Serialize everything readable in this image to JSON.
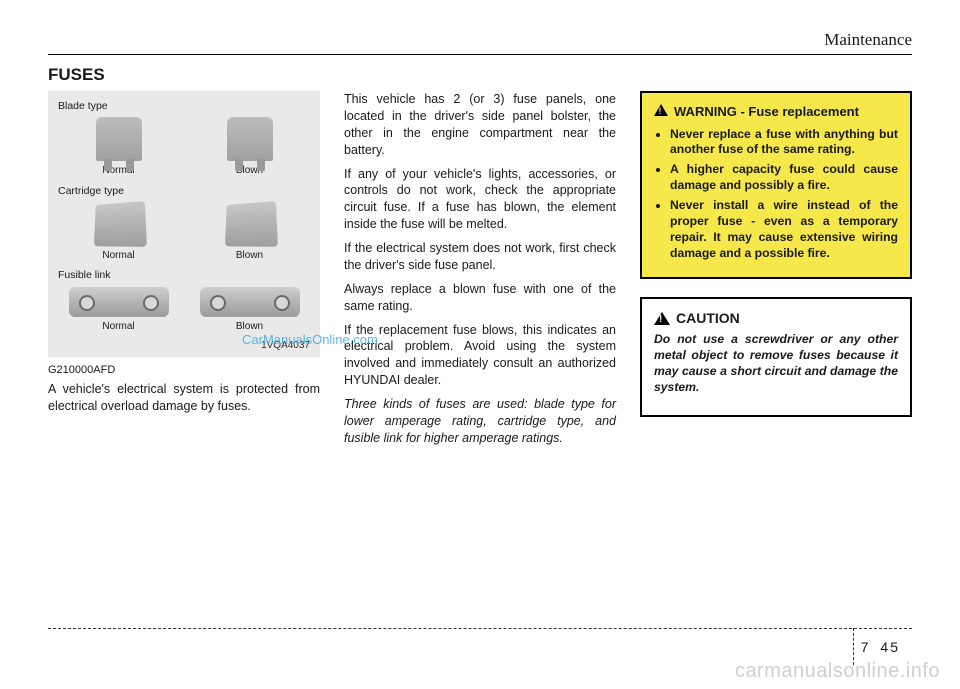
{
  "header": {
    "section": "Maintenance"
  },
  "title": "FUSES",
  "figure": {
    "groups": [
      {
        "label": "Blade type",
        "shape": "blade",
        "items": [
          {
            "caption": "Normal"
          },
          {
            "caption": "Blown"
          }
        ]
      },
      {
        "label": "Cartridge type",
        "shape": "cartridge",
        "items": [
          {
            "caption": "Normal"
          },
          {
            "caption": "Blown"
          }
        ]
      },
      {
        "label": "Fusible link",
        "shape": "fusible",
        "items": [
          {
            "caption": "Normal"
          },
          {
            "caption": "Blown"
          }
        ]
      }
    ],
    "image_code": "1VQA4037"
  },
  "doc_code": "G210000AFD",
  "col1_after_figure": "A vehicle's electrical system is protected from electrical overload damage by fuses.",
  "col2": {
    "p1": "This vehicle has 2 (or 3) fuse panels, one located in the driver's side panel bolster, the other in the engine compartment near the battery.",
    "p2": "If any of your vehicle's lights, accessories, or controls do not work, check the appropriate circuit fuse. If a fuse has blown, the element inside the fuse will be melted.",
    "p3": "If the electrical system does not work, first check the driver's side fuse panel.",
    "p4": "Always replace a blown fuse with one of the same rating.",
    "p5": "If the replacement fuse blows, this indicates an electrical problem. Avoid using the system involved and immediately consult an authorized HYUNDAI dealer.",
    "p6": "Three kinds of fuses are used: blade type for lower amperage rating, cartridge type, and fusible link for higher amperage ratings."
  },
  "warning": {
    "label": "WARNING",
    "subtitle": "- Fuse replacement",
    "items": [
      "Never replace a fuse with anything but another fuse of the same rating.",
      "A higher capacity fuse could cause damage and possibly a fire.",
      "Never install a wire instead of the proper fuse - even as a temporary repair. It may cause extensive wiring damage and a possible fire."
    ]
  },
  "caution": {
    "label": "CAUTION",
    "text": "Do not use a screwdriver or any other metal object to remove fuses because it may cause a short circuit and damage the system."
  },
  "watermark_inline": "CarManualsOnline.com",
  "footer": {
    "chapter": "7",
    "page": "45",
    "site": "carmanualsonline.info"
  },
  "colors": {
    "warning_bg": "#f6e84a",
    "panel_bg": "#e9e9e9",
    "text": "#1a1a1a",
    "footer_watermark": "#cfcfcf",
    "inline_watermark": "#2fa8e0"
  }
}
